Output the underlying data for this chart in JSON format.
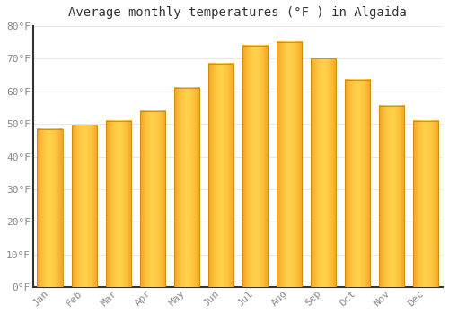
{
  "title": "Average monthly temperatures (°F ) in Algaida",
  "months": [
    "Jan",
    "Feb",
    "Mar",
    "Apr",
    "May",
    "Jun",
    "Jul",
    "Aug",
    "Sep",
    "Oct",
    "Nov",
    "Dec"
  ],
  "values": [
    48.5,
    49.5,
    51.0,
    54.0,
    61.0,
    68.5,
    74.0,
    75.0,
    70.0,
    63.5,
    55.5,
    51.0
  ],
  "bar_color_left": "#F5A623",
  "bar_color_center": "#FFD04B",
  "bar_color_right": "#F5A623",
  "bar_edge_color": "#C8890A",
  "ylim": [
    0,
    80
  ],
  "yticks": [
    0,
    10,
    20,
    30,
    40,
    50,
    60,
    70,
    80
  ],
  "ytick_labels": [
    "0°F",
    "10°F",
    "20°F",
    "30°F",
    "40°F",
    "50°F",
    "60°F",
    "70°F",
    "80°F"
  ],
  "background_color": "#FFFFFF",
  "grid_color": "#E8E8E8",
  "title_fontsize": 10,
  "tick_fontsize": 8,
  "font_family": "monospace",
  "tick_color": "#888888",
  "spine_color": "#333333"
}
